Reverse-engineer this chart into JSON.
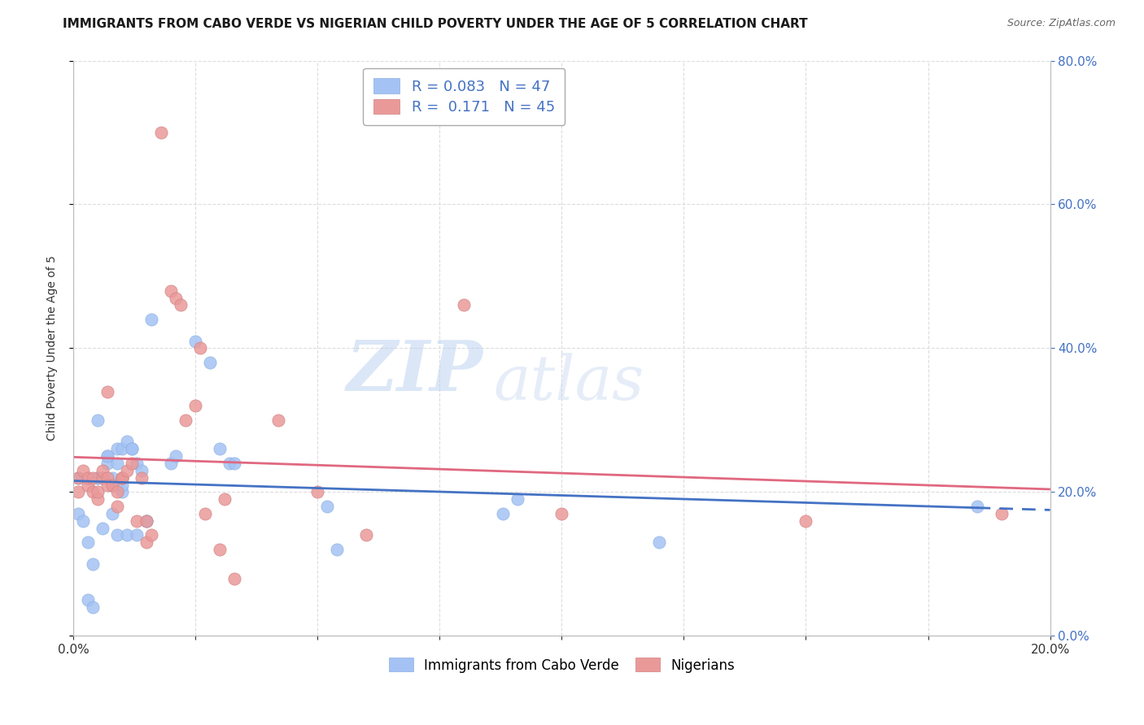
{
  "title": "IMMIGRANTS FROM CABO VERDE VS NIGERIAN CHILD POVERTY UNDER THE AGE OF 5 CORRELATION CHART",
  "source": "Source: ZipAtlas.com",
  "ylabel": "Child Poverty Under the Age of 5",
  "xlim": [
    0.0,
    0.2
  ],
  "ylim": [
    0.0,
    0.8
  ],
  "xticks": [
    0.0,
    0.025,
    0.05,
    0.075,
    0.1,
    0.125,
    0.15,
    0.175,
    0.2
  ],
  "yticks": [
    0.0,
    0.2,
    0.4,
    0.6,
    0.8
  ],
  "blue_color": "#a4c2f4",
  "pink_color": "#ea9999",
  "line_blue_color": "#4472c4",
  "line_pink_color": "#e06880",
  "accent_color": "#4472c4",
  "legend_label1": "Immigrants from Cabo Verde",
  "legend_label2": "Nigerians",
  "watermark_zip": "ZIP",
  "watermark_atlas": "atlas",
  "background_color": "#ffffff",
  "grid_color": "#dddddd",
  "title_fontsize": 11,
  "axis_label_fontsize": 10,
  "tick_fontsize": 11,
  "right_tick_color": "#4472c4",
  "cabo_x": [
    0.001,
    0.001,
    0.002,
    0.003,
    0.003,
    0.004,
    0.004,
    0.005,
    0.005,
    0.005,
    0.006,
    0.006,
    0.007,
    0.007,
    0.007,
    0.008,
    0.008,
    0.008,
    0.009,
    0.009,
    0.009,
    0.01,
    0.01,
    0.01,
    0.011,
    0.011,
    0.012,
    0.012,
    0.013,
    0.013,
    0.014,
    0.015,
    0.015,
    0.016,
    0.02,
    0.021,
    0.025,
    0.028,
    0.03,
    0.032,
    0.033,
    0.052,
    0.054,
    0.088,
    0.091,
    0.12,
    0.185
  ],
  "cabo_y": [
    0.22,
    0.17,
    0.16,
    0.13,
    0.05,
    0.04,
    0.1,
    0.22,
    0.22,
    0.3,
    0.15,
    0.22,
    0.25,
    0.24,
    0.25,
    0.17,
    0.21,
    0.22,
    0.14,
    0.26,
    0.24,
    0.2,
    0.21,
    0.26,
    0.27,
    0.14,
    0.26,
    0.26,
    0.24,
    0.14,
    0.23,
    0.16,
    0.16,
    0.44,
    0.24,
    0.25,
    0.41,
    0.38,
    0.26,
    0.24,
    0.24,
    0.18,
    0.12,
    0.17,
    0.19,
    0.13,
    0.18
  ],
  "nigerian_x": [
    0.001,
    0.001,
    0.002,
    0.003,
    0.003,
    0.004,
    0.004,
    0.005,
    0.005,
    0.006,
    0.006,
    0.007,
    0.007,
    0.007,
    0.008,
    0.009,
    0.009,
    0.01,
    0.01,
    0.01,
    0.011,
    0.012,
    0.013,
    0.014,
    0.015,
    0.015,
    0.016,
    0.018,
    0.02,
    0.021,
    0.022,
    0.023,
    0.025,
    0.026,
    0.027,
    0.03,
    0.031,
    0.033,
    0.042,
    0.05,
    0.06,
    0.08,
    0.1,
    0.15,
    0.19
  ],
  "nigerian_y": [
    0.22,
    0.2,
    0.23,
    0.21,
    0.22,
    0.2,
    0.22,
    0.19,
    0.2,
    0.22,
    0.23,
    0.22,
    0.21,
    0.34,
    0.21,
    0.18,
    0.2,
    0.22,
    0.22,
    0.22,
    0.23,
    0.24,
    0.16,
    0.22,
    0.16,
    0.13,
    0.14,
    0.7,
    0.48,
    0.47,
    0.46,
    0.3,
    0.32,
    0.4,
    0.17,
    0.12,
    0.19,
    0.08,
    0.3,
    0.2,
    0.14,
    0.46,
    0.17,
    0.16,
    0.17
  ]
}
